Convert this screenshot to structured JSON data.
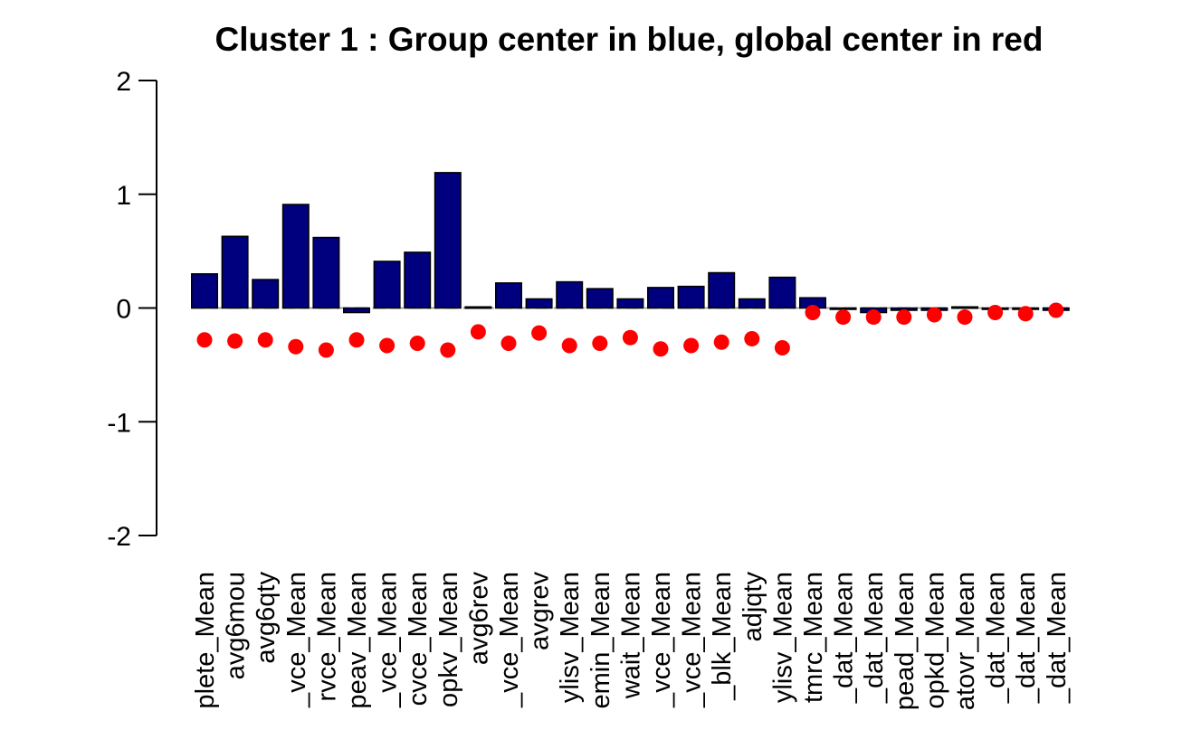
{
  "chart_data": {
    "type": "bar",
    "title": "Cluster 1 : Group center in blue, global center in red",
    "xlabel": "",
    "ylabel": "",
    "ylim": [
      -2,
      2
    ],
    "yticks": [
      "2",
      "1",
      "0",
      "-1",
      "-2"
    ],
    "ytick_values": [
      2,
      1,
      0,
      -1,
      -2
    ],
    "categories": [
      "plete_Mean",
      "avg6mou",
      "avg6qty",
      "_vce_Mean",
      "rvce_Mean",
      "peav_Mean",
      "_vce_Mean",
      "cvce_Mean",
      "opkv_Mean",
      "avg6rev",
      "_vce_Mean",
      "avgrev",
      "ylisv_Mean",
      "emin_Mean",
      "wait_Mean",
      "_vce_Mean",
      "_vce_Mean",
      "_blk_Mean",
      "adjqty",
      "ylisv_Mean",
      "tmrc_Mean",
      "_dat_Mean",
      "_dat_Mean",
      "pead_Mean",
      "opkd_Mean",
      "atovr_Mean",
      "_dat_Mean",
      "_dat_Mean",
      "_dat_Mean"
    ],
    "series": [
      {
        "values": [
          0.3,
          0.63,
          0.25,
          0.91,
          0.62,
          -0.04,
          0.41,
          0.49,
          1.19,
          0.01,
          0.22,
          0.08,
          0.23,
          0.17,
          0.08,
          0.18,
          0.19,
          0.31,
          0.08,
          0.27,
          0.09,
          -0.01,
          -0.04,
          -0.02,
          -0.02,
          0.01,
          0.0,
          -0.01,
          -0.02
        ],
        "color": "#00007f"
      },
      {
        "values": [
          -0.28,
          -0.29,
          -0.28,
          -0.34,
          -0.37,
          -0.28,
          -0.33,
          -0.31,
          -0.37,
          -0.21,
          -0.31,
          -0.22,
          -0.33,
          -0.31,
          -0.26,
          -0.36,
          -0.33,
          -0.3,
          -0.27,
          -0.35,
          -0.04,
          -0.08,
          -0.08,
          -0.08,
          -0.06,
          -0.08,
          -0.04,
          -0.05,
          -0.02
        ],
        "color": "#ff0000"
      }
    ]
  }
}
